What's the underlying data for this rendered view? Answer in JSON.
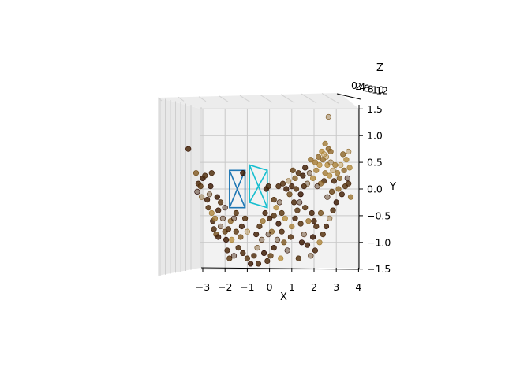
{
  "chart_data": {
    "type": "scatter",
    "projection": "3d",
    "view": "looking down the Z axis (X horizontal, Y vertical, Y increasing downward)",
    "xlabel": "X",
    "ylabel": "Y",
    "zlabel": "Z",
    "xticks": [
      "−3",
      "−2",
      "−1",
      "0",
      "1",
      "2",
      "3",
      "4"
    ],
    "yticks": [
      "−1.5",
      "−1.0",
      "−0.5",
      "0.0",
      "0.5",
      "1.0",
      "1.5"
    ],
    "zticks": [
      "0",
      "2",
      "4",
      "6",
      "8",
      "10",
      "12"
    ],
    "xlim": [
      -3.3,
      4.1
    ],
    "ylim": [
      -1.5,
      1.5
    ],
    "grid": true,
    "point_color_range": [
      "#3d1c05",
      "#c8a050"
    ],
    "camera_frustums": [
      {
        "color": "#1f77b4",
        "corners": [
          [
            -1.8,
            -0.35
          ],
          [
            -1.1,
            -0.35
          ],
          [
            -1.1,
            0.35
          ],
          [
            -1.8,
            0.35
          ]
        ]
      },
      {
        "color": "#17becf",
        "corners": [
          [
            -0.9,
            -0.25
          ],
          [
            -0.1,
            -0.35
          ],
          [
            -0.1,
            0.35
          ],
          [
            -0.9,
            0.45
          ]
        ]
      }
    ],
    "points": [
      [
        -3.25,
        -0.05
      ],
      [
        -3.2,
        0.1
      ],
      [
        -3.1,
        0.05
      ],
      [
        -3.0,
        0.2
      ],
      [
        -2.9,
        0.25
      ],
      [
        -3.05,
        -0.15
      ],
      [
        -2.8,
        -0.2
      ],
      [
        -2.75,
        -0.35
      ],
      [
        -2.6,
        -0.45
      ],
      [
        -2.55,
        -0.6
      ],
      [
        -2.7,
        -0.1
      ],
      [
        -2.65,
        0.05
      ],
      [
        -2.5,
        -0.75
      ],
      [
        -2.4,
        -0.85
      ],
      [
        -2.3,
        -0.9
      ],
      [
        -2.2,
        -0.7
      ],
      [
        -2.45,
        -0.55
      ],
      [
        -2.3,
        -0.4
      ],
      [
        -2.2,
        -0.25
      ],
      [
        -2.35,
        -0.15
      ],
      [
        -2.1,
        -0.55
      ],
      [
        -2.0,
        -0.8
      ],
      [
        -1.95,
        -0.95
      ],
      [
        -1.85,
        -0.75
      ],
      [
        -1.75,
        -0.6
      ],
      [
        -1.6,
        -0.55
      ],
      [
        -1.5,
        -0.45
      ],
      [
        -1.7,
        -0.95
      ],
      [
        -1.9,
        -1.15
      ],
      [
        -1.8,
        -1.3
      ],
      [
        -1.6,
        -1.25
      ],
      [
        -1.4,
        -1.1
      ],
      [
        -1.3,
        -0.9
      ],
      [
        -1.25,
        -0.7
      ],
      [
        -1.1,
        -0.55
      ],
      [
        -1.0,
        -0.8
      ],
      [
        -1.2,
        -1.2
      ],
      [
        -1.0,
        -1.3
      ],
      [
        -0.85,
        -1.4
      ],
      [
        -0.7,
        -1.25
      ],
      [
        -0.55,
        -1.1
      ],
      [
        -0.6,
        -0.85
      ],
      [
        -0.45,
        -0.7
      ],
      [
        -0.3,
        -0.6
      ],
      [
        -0.2,
        -0.45
      ],
      [
        -0.35,
        -0.95
      ],
      [
        -0.25,
        -1.2
      ],
      [
        -0.1,
        -1.35
      ],
      [
        0.05,
        -1.25
      ],
      [
        0.2,
        -1.1
      ],
      [
        0.35,
        -0.95
      ],
      [
        0.1,
        -0.8
      ],
      [
        0.0,
        -0.55
      ],
      [
        0.2,
        -0.5
      ],
      [
        0.3,
        -0.35
      ],
      [
        0.45,
        -0.25
      ],
      [
        0.55,
        -0.45
      ],
      [
        0.4,
        -0.65
      ],
      [
        0.55,
        -0.8
      ],
      [
        0.65,
        -1.0
      ],
      [
        0.8,
        -1.15
      ],
      [
        0.95,
        -0.9
      ],
      [
        1.0,
        -0.7
      ],
      [
        1.15,
        -0.55
      ],
      [
        1.25,
        -0.4
      ],
      [
        1.35,
        -0.25
      ],
      [
        1.1,
        -0.25
      ],
      [
        0.9,
        -0.1
      ],
      [
        0.75,
        0.0
      ],
      [
        0.6,
        0.1
      ],
      [
        0.85,
        0.15
      ],
      [
        1.0,
        0.05
      ],
      [
        1.2,
        0.0
      ],
      [
        1.4,
        -0.1
      ],
      [
        1.55,
        0.05
      ],
      [
        1.7,
        0.1
      ],
      [
        1.5,
        0.25
      ],
      [
        1.3,
        0.3
      ],
      [
        1.15,
        0.2
      ],
      [
        1.6,
        0.4
      ],
      [
        1.8,
        0.3
      ],
      [
        1.95,
        0.2
      ],
      [
        2.1,
        0.35
      ],
      [
        2.25,
        0.45
      ],
      [
        2.4,
        0.55
      ],
      [
        2.55,
        0.6
      ],
      [
        2.35,
        0.7
      ],
      [
        2.2,
        0.6
      ],
      [
        2.05,
        0.5
      ],
      [
        2.6,
        0.45
      ],
      [
        2.75,
        0.5
      ],
      [
        2.5,
        0.3
      ],
      [
        2.7,
        0.25
      ],
      [
        2.9,
        0.15
      ],
      [
        3.05,
        0.3
      ],
      [
        3.2,
        0.45
      ],
      [
        3.35,
        0.35
      ],
      [
        3.1,
        0.0
      ],
      [
        3.25,
        -0.1
      ],
      [
        3.4,
        0.05
      ],
      [
        3.5,
        0.2
      ],
      [
        3.45,
        0.55
      ],
      [
        3.3,
        0.65
      ],
      [
        3.0,
        -0.25
      ],
      [
        2.85,
        -0.4
      ],
      [
        2.7,
        -0.55
      ],
      [
        2.55,
        -0.7
      ],
      [
        2.4,
        -0.85
      ],
      [
        2.25,
        -1.0
      ],
      [
        2.05,
        -1.15
      ],
      [
        1.85,
        -1.25
      ],
      [
        1.95,
        -0.9
      ],
      [
        2.1,
        -0.7
      ],
      [
        2.3,
        -0.45
      ],
      [
        1.7,
        -1.05
      ],
      [
        1.55,
        -0.85
      ],
      [
        1.75,
        -0.6
      ],
      [
        1.9,
        -0.45
      ],
      [
        1.6,
        -0.35
      ],
      [
        1.45,
        -1.0
      ],
      [
        2.6,
        -0.15
      ],
      [
        2.8,
        -0.05
      ],
      [
        2.95,
        0.45
      ],
      [
        2.45,
        0.15
      ],
      [
        2.3,
        0.1
      ],
      [
        2.15,
        0.05
      ],
      [
        1.3,
        -1.3
      ],
      [
        0.5,
        -1.3
      ],
      [
        -0.5,
        -1.4
      ],
      [
        -1.5,
        -0.8
      ],
      [
        -2.0,
        -0.35
      ],
      [
        -2.6,
        0.3
      ],
      [
        -3.3,
        0.3
      ],
      [
        2.65,
        0.75
      ],
      [
        2.5,
        0.85
      ],
      [
        2.45,
        0.65
      ],
      [
        2.75,
        0.7
      ],
      [
        0.2,
        -0.2
      ],
      [
        -0.15,
        0.0
      ],
      [
        0.4,
        0.05
      ],
      [
        3.55,
        0.7
      ],
      [
        3.6,
        0.4
      ],
      [
        3.55,
        0.1
      ],
      [
        3.65,
        -0.15
      ],
      [
        -3.65,
        0.75
      ],
      [
        2.65,
        1.35
      ],
      [
        -1.2,
        0.3
      ],
      [
        -0.05,
        0.05
      ],
      [
        1.05,
        0.35
      ],
      [
        1.85,
        0.55
      ],
      [
        2.85,
        0.35
      ],
      [
        3.15,
        0.2
      ],
      [
        2.0,
        -0.6
      ],
      [
        1.4,
        -0.65
      ],
      [
        0.7,
        -0.55
      ],
      [
        -0.05,
        -0.85
      ]
    ]
  }
}
